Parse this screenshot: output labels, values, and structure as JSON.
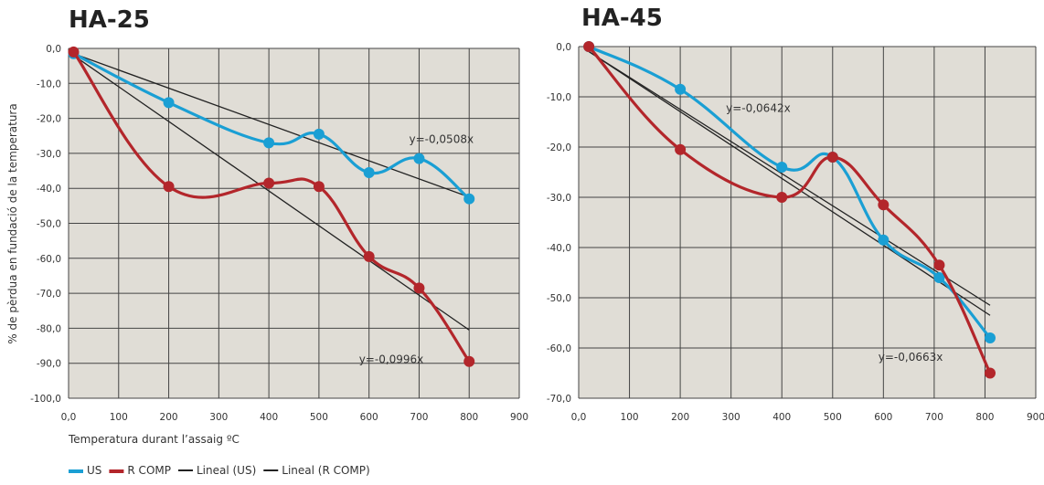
{
  "chart_data": [
    {
      "type": "line",
      "title": "HA-25",
      "xlabel": "Temperatura durant l’assaig ºC",
      "ylabel": "% de pèrdua en fundació de la temperatura",
      "xlim": [
        0,
        900
      ],
      "ylim": [
        -100,
        0
      ],
      "x_ticks": [
        "0,0",
        "100",
        "200",
        "300",
        "400",
        "500",
        "600",
        "700",
        "800",
        "900"
      ],
      "y_ticks": [
        "0,0",
        "-10,0",
        "-20,0",
        "-30,0",
        "-40,0",
        "-50,0",
        "-60,0",
        "-70,0",
        "-80,0",
        "-90,0",
        "-100,0"
      ],
      "grid": true,
      "series": [
        {
          "name": "US",
          "color": "#1a9fd4",
          "x": [
            10,
            200,
            400,
            500,
            600,
            700,
            800
          ],
          "y": [
            -1.5,
            -15.5,
            -27,
            -24.5,
            -35.5,
            -31.5,
            -43
          ]
        },
        {
          "name": "R COMP",
          "color": "#b3262b",
          "x": [
            10,
            200,
            400,
            500,
            600,
            700,
            800
          ],
          "y": [
            -1,
            -39.5,
            -38.5,
            -39.5,
            -59.5,
            -68.5,
            -89.5
          ]
        }
      ],
      "trendlines": [
        {
          "name": "Lineal (US)",
          "color": "#222222",
          "x": [
            10,
            800
          ],
          "y": [
            -1.5,
            -42.5
          ]
        },
        {
          "name": "Lineal (R COMP)",
          "color": "#222222",
          "x": [
            10,
            800
          ],
          "y": [
            -2,
            -80.5
          ]
        }
      ],
      "annotations": [
        {
          "text": "y=-0,0508x",
          "x": 680,
          "y": -27
        },
        {
          "text": "y=-0,0996x",
          "x": 580,
          "y": -90
        }
      ]
    },
    {
      "type": "line",
      "title": "HA-45",
      "xlim": [
        0,
        900
      ],
      "ylim": [
        -70,
        0
      ],
      "x_ticks": [
        "0,0",
        "100",
        "200",
        "300",
        "400",
        "500",
        "600",
        "700",
        "800",
        "900"
      ],
      "y_ticks": [
        "0,0",
        "-10,0",
        "-20,0",
        "-30,0",
        "-40,0",
        "-50,0",
        "-60,0",
        "-70,0"
      ],
      "grid": true,
      "series": [
        {
          "name": "US",
          "color": "#1a9fd4",
          "x": [
            20,
            200,
            400,
            500,
            600,
            710,
            810
          ],
          "y": [
            0,
            -8.5,
            -24,
            -22,
            -38.5,
            -46,
            -58
          ]
        },
        {
          "name": "R COMP",
          "color": "#b3262b",
          "x": [
            20,
            200,
            400,
            500,
            600,
            710,
            810
          ],
          "y": [
            0,
            -20.5,
            -30,
            -22,
            -31.5,
            -43.5,
            -65
          ]
        }
      ],
      "trendlines": [
        {
          "name": "Lineal (US)",
          "color": "#222222",
          "x": [
            20,
            810
          ],
          "y": [
            -1,
            -51.5
          ]
        },
        {
          "name": "Lineal (R COMP)",
          "color": "#222222",
          "x": [
            20,
            810
          ],
          "y": [
            -1,
            -53.5
          ]
        }
      ],
      "annotations": [
        {
          "text": "y=-0,0642x",
          "x": 290,
          "y": -13
        },
        {
          "text": "y=-0,0663x",
          "x": 590,
          "y": -62.5
        }
      ]
    }
  ],
  "legend": {
    "placement": "bottom-left",
    "items": [
      {
        "label": "US",
        "color": "#1a9fd4"
      },
      {
        "label": "R COMP",
        "color": "#b3262b"
      },
      {
        "label": "Lineal (US)",
        "color": "#222222"
      },
      {
        "label": "Lineal (R COMP)",
        "color": "#222222"
      }
    ]
  },
  "colors": {
    "plot_background": "#e0ddd6",
    "grid": "#444444"
  }
}
